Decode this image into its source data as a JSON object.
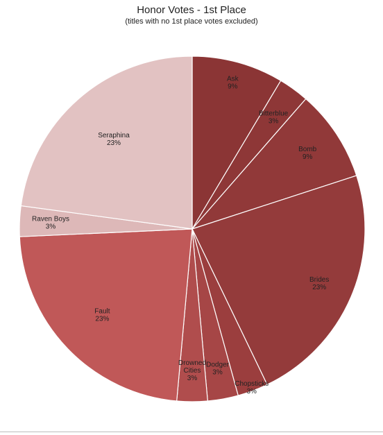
{
  "chart_data": {
    "type": "pie",
    "title": "Honor Votes - 1st Place",
    "subtitle": "(titles with no 1st place votes excluded)",
    "slices": [
      {
        "label": "Ask",
        "value": 3,
        "percent_label": "9%",
        "color": "#8B3535"
      },
      {
        "label": "Bitterblue",
        "value": 1,
        "percent_label": "3%",
        "color": "#8E3737"
      },
      {
        "label": "Bomb",
        "value": 3,
        "percent_label": "9%",
        "color": "#913939"
      },
      {
        "label": "Brides",
        "value": 8,
        "percent_label": "23%",
        "color": "#943B3B"
      },
      {
        "label": "Chopsticks",
        "value": 1,
        "percent_label": "3%",
        "color": "#9B3E3E"
      },
      {
        "label": "Dodger",
        "value": 1,
        "percent_label": "3%",
        "color": "#A64646"
      },
      {
        "label": "Drowned Cities",
        "value": 1,
        "percent_label": "3%",
        "color": "#B04D4D"
      },
      {
        "label": "Fault",
        "value": 8,
        "percent_label": "23%",
        "color": "#C05858"
      },
      {
        "label": "Raven Boys",
        "value": 1,
        "percent_label": "3%",
        "color": "#DDB8B8"
      },
      {
        "label": "Seraphina",
        "value": 8,
        "percent_label": "23%",
        "color": "#E2C2C2"
      }
    ],
    "start_angle": "12 o'clock",
    "direction": "clockwise",
    "legend": "none (labels on slices)"
  }
}
